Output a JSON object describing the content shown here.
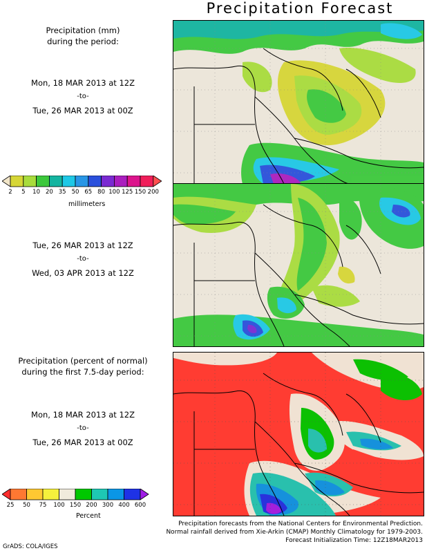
{
  "title": "Precipitation Forecast",
  "section1": {
    "heading_line1": "Precipitation (mm)",
    "heading_line2": "during the period:",
    "start": "Mon, 18 MAR 2013 at 12Z",
    "to": "-to-",
    "end": "Tue, 26 MAR 2013 at 00Z"
  },
  "section2": {
    "start": "Tue, 26 MAR 2013 at 12Z",
    "to": "-to-",
    "end": "Wed, 03 APR 2013 at 12Z"
  },
  "section3": {
    "heading_line1": "Precipitation (percent of normal)",
    "heading_line2": "during the first 7.5-day period:",
    "start": "Mon, 18 MAR 2013 at 12Z",
    "to": "-to-",
    "end": "Tue, 26 MAR 2013 at 00Z"
  },
  "legend_mm": {
    "unit": "millimeters",
    "labels": [
      "2",
      "5",
      "10",
      "20",
      "35",
      "50",
      "65",
      "80",
      "100",
      "125",
      "150",
      "200"
    ],
    "colors": [
      "#f2e6c8",
      "#d6d636",
      "#a8dc3c",
      "#3cc83c",
      "#14b4a0",
      "#1ec8e6",
      "#2896e6",
      "#2a50dc",
      "#7a2ad2",
      "#aa1ebe",
      "#dc148c",
      "#f01e5a",
      "#ff5050"
    ]
  },
  "legend_pct": {
    "unit": "Percent",
    "labels": [
      "25",
      "50",
      "75",
      "100",
      "150",
      "200",
      "300",
      "400",
      "600"
    ],
    "colors": [
      "#ff2d2d",
      "#ff7832",
      "#ffc832",
      "#f5f03c",
      "#f0ebdc",
      "#00c800",
      "#1ec8b4",
      "#0a96e6",
      "#1e32e6",
      "#a01ee6"
    ]
  },
  "credits": {
    "line1": "Precipitation forecasts from the National Centers for Environmental Prediction.",
    "line2": "Normal rainfall derived from Xie-Arkin (CMAP) Monthly Climatology for 1979-2003.",
    "line3": "Forecast Initialization Time: 12Z18MAR2013"
  },
  "grads": "GrADS: COLA/IGES"
}
